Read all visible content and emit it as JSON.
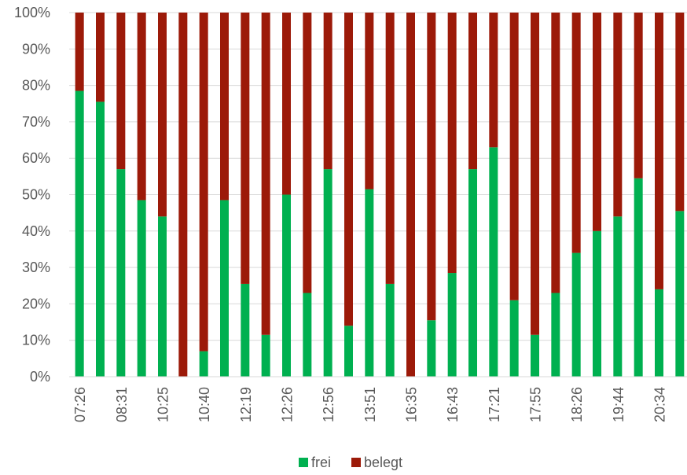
{
  "chart_data": {
    "type": "bar",
    "stacked": true,
    "stack_mode": "percent",
    "title": "",
    "xlabel": "",
    "ylabel": "",
    "ylim": [
      0,
      100
    ],
    "y_tick_labels": [
      "0%",
      "10%",
      "20%",
      "30%",
      "40%",
      "50%",
      "60%",
      "70%",
      "80%",
      "90%",
      "100%"
    ],
    "categories": [
      "07:26",
      "",
      "08:31",
      "",
      "10:25",
      "",
      "10:40",
      "",
      "12:19",
      "",
      "12:26",
      "",
      "12:56",
      "",
      "13:51",
      "",
      "16:35",
      "",
      "16:43",
      "",
      "17:21",
      "",
      "17:55",
      "",
      "18:26",
      "",
      "19:44",
      "",
      "20:34",
      ""
    ],
    "series": [
      {
        "name": "frei",
        "color": "#00b050",
        "values": [
          78.5,
          75.5,
          57,
          48.5,
          44,
          0,
          7,
          48.5,
          25.5,
          11.5,
          50,
          23,
          57,
          14,
          51.5,
          25.5,
          0,
          15.5,
          28.5,
          57,
          63,
          21,
          11.5,
          23,
          34,
          40,
          44,
          54.5,
          24,
          45.5
        ]
      },
      {
        "name": "belegt",
        "color": "#9c1a09",
        "values": [
          21.5,
          24.5,
          43,
          51.5,
          56,
          100,
          93,
          51.5,
          74.5,
          88.5,
          50,
          77,
          43,
          86,
          48.5,
          74.5,
          100,
          84.5,
          71.5,
          43,
          37,
          79,
          88.5,
          77,
          66,
          60,
          56,
          45.5,
          76,
          54.5
        ]
      }
    ],
    "legend": {
      "position": "bottom"
    },
    "grid": true
  }
}
